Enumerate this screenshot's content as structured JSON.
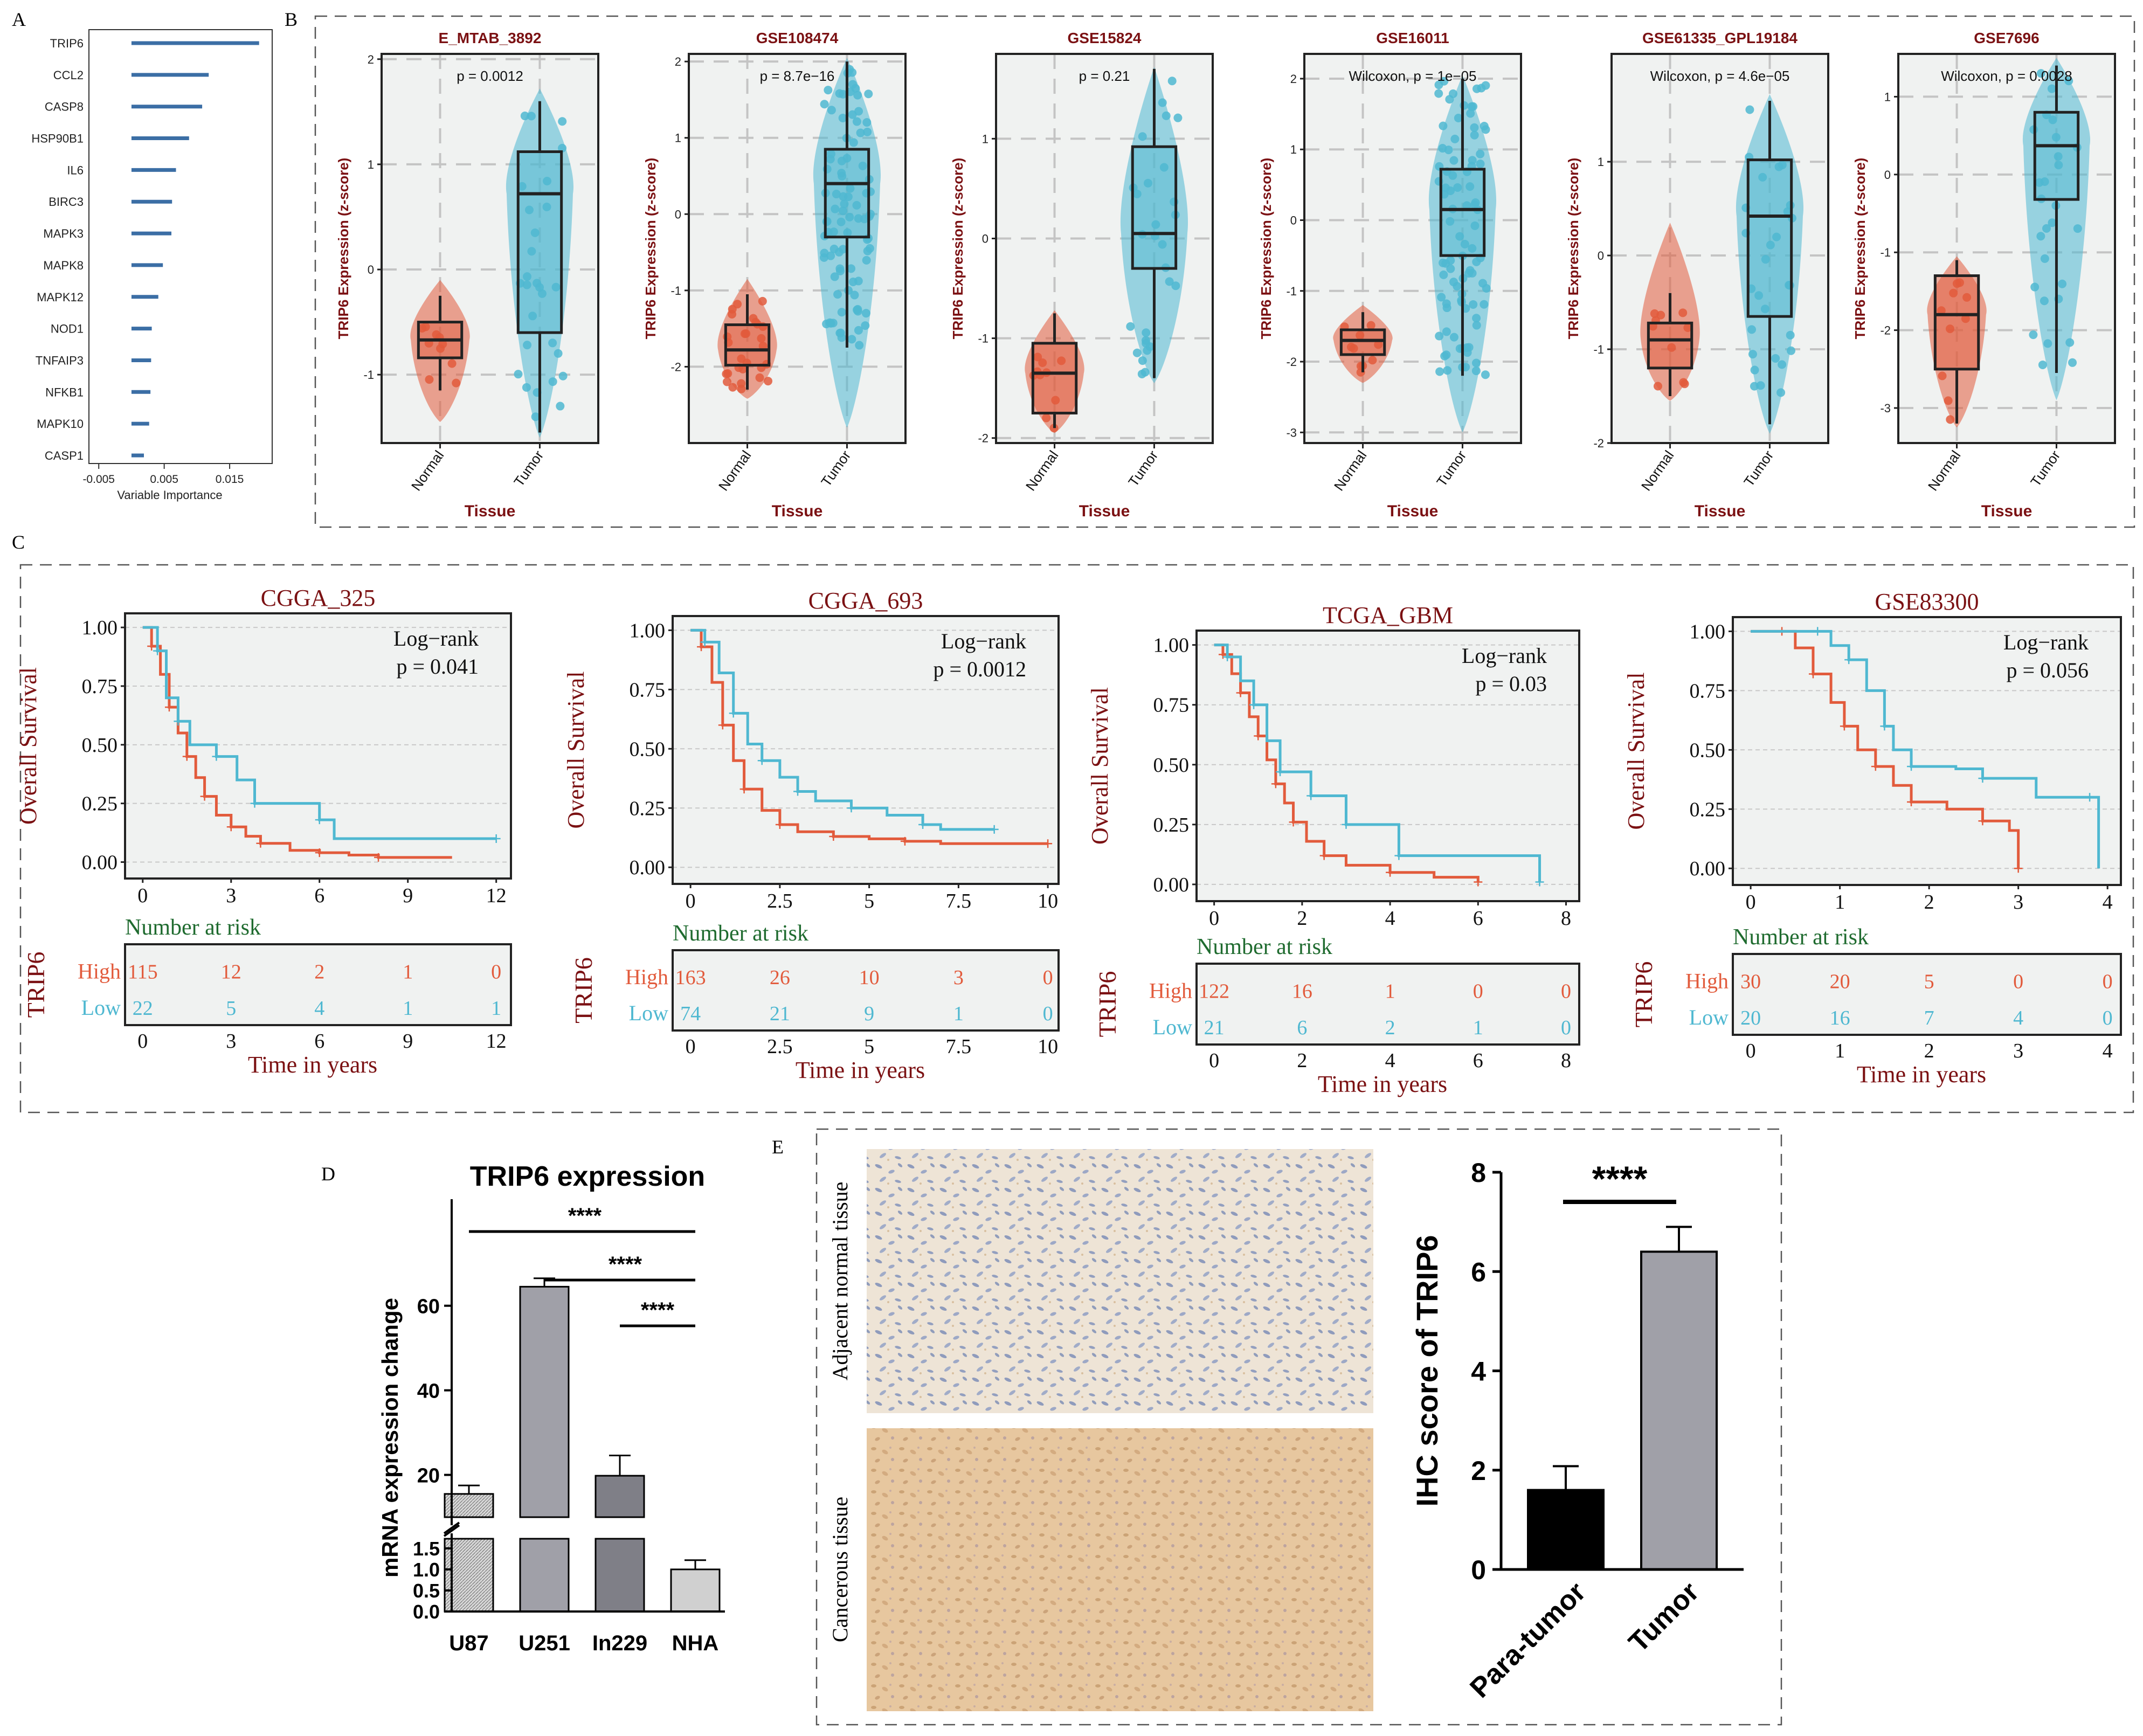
{
  "panel_letters": [
    "A",
    "B",
    "C",
    "D",
    "E"
  ],
  "colors": {
    "normal_red": "#e25b3c",
    "tumor_blue": "#4fb8d1",
    "panel_bg": "#f0f2f1",
    "title_red": "#7b1113",
    "bar_blue": "#3b6ea5",
    "risk_green": "#1f6b2f"
  },
  "chart_data": [
    {
      "id": "A",
      "type": "bar",
      "orientation": "horizontal",
      "categories": [
        "TRIP6",
        "CCL2",
        "CASP8",
        "HSP90B1",
        "IL6",
        "BIRC3",
        "MAPK3",
        "MAPK8",
        "MAPK12",
        "NOD1",
        "TNFAIP3",
        "NFKB1",
        "MAPK10",
        "CASP1"
      ],
      "values": [
        0.0195,
        0.0118,
        0.0108,
        0.0088,
        0.0068,
        0.0062,
        0.0061,
        0.0048,
        0.0041,
        0.0031,
        0.003,
        0.0029,
        0.0027,
        0.0019
      ],
      "xlabel": "Variable Importance",
      "xlim": [
        -0.0065,
        0.0215
      ],
      "xticks": [
        -0.005,
        0.005,
        0.015
      ],
      "xtick_labels": [
        "-0.005",
        "0.005",
        "0.015"
      ]
    },
    {
      "id": "B",
      "type": "violin-box",
      "ylabel": "TRIP6 Expression (z-score)",
      "xlabel": "Tissue",
      "groups": [
        "Normal",
        "Tumor"
      ],
      "subplots": [
        {
          "title": "E_MTAB_3892",
          "pvalue": "p = 0.0012",
          "ylim": [
            -1.65,
            2.05
          ],
          "yticks": [
            -1,
            0,
            1,
            2
          ],
          "normal": {
            "q1": -0.84,
            "median": -0.67,
            "q3": -0.5,
            "min": -1.15,
            "max": -0.25,
            "vmin": -1.45,
            "vmax": -0.1
          },
          "tumor": {
            "q1": -0.6,
            "median": 0.72,
            "q3": 1.12,
            "min": -1.55,
            "max": 1.6,
            "vmin": -1.6,
            "vmax": 1.72
          }
        },
        {
          "title": "GSE108474",
          "pvalue": "p = 8.7e−16",
          "ylim": [
            -3.0,
            2.1
          ],
          "yticks": [
            -2,
            -1,
            0,
            1,
            2
          ],
          "normal": {
            "q1": -1.98,
            "median": -1.78,
            "q3": -1.45,
            "min": -2.3,
            "max": -1.05,
            "vmin": -2.42,
            "vmax": -0.85
          },
          "tumor": {
            "q1": -0.3,
            "median": 0.4,
            "q3": 0.85,
            "min": -1.75,
            "max": 2.0,
            "vmin": -2.8,
            "vmax": 2.05
          }
        },
        {
          "title": "GSE15824",
          "pvalue": "p = 0.21",
          "ylim": [
            -2.05,
            1.85
          ],
          "yticks": [
            -2,
            -1,
            0,
            1
          ],
          "normal": {
            "q1": -1.75,
            "median": -1.35,
            "q3": -1.05,
            "min": -1.9,
            "max": -0.75,
            "vmin": -1.95,
            "vmax": -0.72
          },
          "tumor": {
            "q1": -0.3,
            "median": 0.05,
            "q3": 0.92,
            "min": -1.4,
            "max": 1.7,
            "vmin": -1.45,
            "vmax": 1.72
          }
        },
        {
          "title": "GSE16011",
          "pvalue": "Wilcoxon, p = 1e−05",
          "ylim": [
            -3.15,
            2.35
          ],
          "yticks": [
            -3,
            -2,
            -1,
            0,
            1,
            2
          ],
          "normal": {
            "q1": -1.9,
            "median": -1.7,
            "q3": -1.55,
            "min": -2.15,
            "max": -1.3,
            "vmin": -2.3,
            "vmax": -1.2
          },
          "tumor": {
            "q1": -0.5,
            "median": 0.15,
            "q3": 0.72,
            "min": -2.2,
            "max": 2.0,
            "vmin": -3.0,
            "vmax": 2.05
          }
        },
        {
          "title": "GSE61335_GPL19184",
          "pvalue": "Wilcoxon, p = 4.6e−05",
          "ylim": [
            -2.0,
            2.15
          ],
          "yticks": [
            -2,
            -1,
            0,
            1
          ],
          "normal": {
            "q1": -1.2,
            "median": -0.9,
            "q3": -0.72,
            "min": -1.5,
            "max": -0.4,
            "vmin": -1.55,
            "vmax": 0.35
          },
          "tumor": {
            "q1": -0.65,
            "median": 0.42,
            "q3": 1.02,
            "min": -1.8,
            "max": 1.65,
            "vmin": -1.9,
            "vmax": 1.72
          }
        },
        {
          "title": "GSE7696",
          "pvalue": "Wilcoxon, p = 0.0028",
          "ylim": [
            -3.45,
            1.55
          ],
          "yticks": [
            -3,
            -2,
            -1,
            0,
            1
          ],
          "normal": {
            "q1": -2.5,
            "median": -1.8,
            "q3": -1.3,
            "min": -3.2,
            "max": -1.1,
            "vmin": -3.25,
            "vmax": -1.05
          },
          "tumor": {
            "q1": -0.32,
            "median": 0.37,
            "q3": 0.8,
            "min": -2.55,
            "max": 1.4,
            "vmin": -2.9,
            "vmax": 1.5
          }
        }
      ]
    },
    {
      "id": "C",
      "type": "kaplan-meier",
      "ylabel": "Overall Survival",
      "xlabel": "Time in years",
      "risk_title": "Number at risk",
      "risk_ylabel": "TRIP6",
      "group_labels": [
        "High",
        "Low"
      ],
      "log_rank_label": "Log−rank",
      "yticks": [
        0,
        0.25,
        0.5,
        0.75,
        1.0
      ],
      "ytick_labels": [
        "0.00",
        "0.25",
        "0.50",
        "0.75",
        "1.00"
      ],
      "subplots": [
        {
          "title": "CGGA_325",
          "pvalue": "p = 0.041",
          "xlim": [
            -0.6,
            12.5
          ],
          "xticks": [
            0,
            3,
            6,
            9,
            12
          ],
          "xtick_labels": [
            "0",
            "3",
            "6",
            "9",
            "12"
          ],
          "high": [
            [
              0,
              1
            ],
            [
              0.3,
              0.92
            ],
            [
              0.6,
              0.8
            ],
            [
              0.9,
              0.66
            ],
            [
              1.2,
              0.55
            ],
            [
              1.5,
              0.45
            ],
            [
              1.8,
              0.36
            ],
            [
              2.1,
              0.28
            ],
            [
              2.5,
              0.2
            ],
            [
              3,
              0.15
            ],
            [
              3.5,
              0.11
            ],
            [
              4,
              0.08
            ],
            [
              5,
              0.05
            ],
            [
              6,
              0.04
            ],
            [
              7,
              0.03
            ],
            [
              8,
              0.02
            ],
            [
              10.5,
              0.02
            ]
          ],
          "low": [
            [
              0,
              1
            ],
            [
              0.5,
              0.9
            ],
            [
              0.8,
              0.7
            ],
            [
              1.2,
              0.6
            ],
            [
              1.6,
              0.5
            ],
            [
              2.5,
              0.45
            ],
            [
              3.2,
              0.35
            ],
            [
              3.8,
              0.25
            ],
            [
              5.5,
              0.25
            ],
            [
              6,
              0.18
            ],
            [
              6.5,
              0.1
            ],
            [
              12,
              0.1
            ]
          ],
          "risk_times": [
            0,
            3,
            6,
            9,
            12
          ],
          "risk_high": [
            115,
            12,
            2,
            1,
            0
          ],
          "risk_low": [
            22,
            5,
            4,
            1,
            1
          ]
        },
        {
          "title": "CGGA_693",
          "pvalue": "p = 0.0012",
          "xlim": [
            -0.5,
            10.3
          ],
          "xticks": [
            0,
            2.5,
            5,
            7.5,
            10
          ],
          "xtick_labels": [
            "0",
            "2.5",
            "5",
            "7.5",
            "10"
          ],
          "high": [
            [
              0,
              1
            ],
            [
              0.3,
              0.93
            ],
            [
              0.6,
              0.78
            ],
            [
              0.9,
              0.6
            ],
            [
              1.2,
              0.45
            ],
            [
              1.5,
              0.33
            ],
            [
              2,
              0.24
            ],
            [
              2.5,
              0.18
            ],
            [
              3,
              0.15
            ],
            [
              4,
              0.13
            ],
            [
              5,
              0.12
            ],
            [
              6,
              0.11
            ],
            [
              7,
              0.1
            ],
            [
              10,
              0.1
            ]
          ],
          "low": [
            [
              0,
              1
            ],
            [
              0.4,
              0.95
            ],
            [
              0.8,
              0.82
            ],
            [
              1.2,
              0.65
            ],
            [
              1.6,
              0.52
            ],
            [
              2,
              0.45
            ],
            [
              2.5,
              0.38
            ],
            [
              3,
              0.32
            ],
            [
              3.5,
              0.28
            ],
            [
              4.5,
              0.25
            ],
            [
              5.5,
              0.22
            ],
            [
              6.5,
              0.18
            ],
            [
              7,
              0.16
            ],
            [
              8.5,
              0.16
            ]
          ],
          "risk_times": [
            0,
            2.5,
            5,
            7.5,
            10
          ],
          "risk_high": [
            163,
            26,
            10,
            3,
            0
          ],
          "risk_low": [
            74,
            21,
            9,
            1,
            0
          ]
        },
        {
          "title": "TCGA_GBM",
          "pvalue": "p = 0.03",
          "xlim": [
            -0.4,
            8.3
          ],
          "xticks": [
            0,
            2,
            4,
            6,
            8
          ],
          "xtick_labels": [
            "0",
            "2",
            "4",
            "6",
            "8"
          ],
          "high": [
            [
              0,
              1
            ],
            [
              0.2,
              0.96
            ],
            [
              0.4,
              0.88
            ],
            [
              0.6,
              0.8
            ],
            [
              0.8,
              0.7
            ],
            [
              1.0,
              0.62
            ],
            [
              1.2,
              0.52
            ],
            [
              1.4,
              0.42
            ],
            [
              1.6,
              0.34
            ],
            [
              1.8,
              0.26
            ],
            [
              2.1,
              0.18
            ],
            [
              2.5,
              0.12
            ],
            [
              3,
              0.08
            ],
            [
              4,
              0.05
            ],
            [
              5,
              0.03
            ],
            [
              6,
              0.01
            ]
          ],
          "low": [
            [
              0,
              1
            ],
            [
              0.3,
              0.95
            ],
            [
              0.6,
              0.85
            ],
            [
              0.9,
              0.75
            ],
            [
              1.2,
              0.6
            ],
            [
              1.5,
              0.47
            ],
            [
              2,
              0.47
            ],
            [
              2.2,
              0.37
            ],
            [
              2.7,
              0.37
            ],
            [
              3,
              0.25
            ],
            [
              4.1,
              0.25
            ],
            [
              4.2,
              0.12
            ],
            [
              7.2,
              0.12
            ],
            [
              7.4,
              0.01
            ]
          ],
          "risk_times": [
            0,
            2,
            4,
            6,
            8
          ],
          "risk_high": [
            122,
            16,
            1,
            0,
            0
          ],
          "risk_low": [
            21,
            6,
            2,
            1,
            0
          ]
        },
        {
          "title": "GSE83300",
          "pvalue": "p = 0.056",
          "xlim": [
            -0.2,
            4.15
          ],
          "xticks": [
            0,
            1,
            2,
            3,
            4
          ],
          "xtick_labels": [
            "0",
            "1",
            "2",
            "3",
            "4"
          ],
          "high": [
            [
              0,
              1
            ],
            [
              0.35,
              1
            ],
            [
              0.5,
              0.93
            ],
            [
              0.7,
              0.82
            ],
            [
              0.9,
              0.7
            ],
            [
              1.05,
              0.6
            ],
            [
              1.2,
              0.5
            ],
            [
              1.4,
              0.43
            ],
            [
              1.6,
              0.35
            ],
            [
              1.8,
              0.28
            ],
            [
              2.2,
              0.25
            ],
            [
              2.6,
              0.2
            ],
            [
              2.9,
              0.16
            ],
            [
              3.0,
              0.0
            ]
          ],
          "low": [
            [
              0,
              1
            ],
            [
              0.75,
              1
            ],
            [
              0.9,
              0.94
            ],
            [
              1.1,
              0.88
            ],
            [
              1.3,
              0.75
            ],
            [
              1.5,
              0.6
            ],
            [
              1.6,
              0.5
            ],
            [
              1.8,
              0.43
            ],
            [
              2.3,
              0.42
            ],
            [
              2.6,
              0.38
            ],
            [
              3.2,
              0.3
            ],
            [
              3.8,
              0.3
            ],
            [
              3.9,
              0.0
            ]
          ],
          "risk_times": [
            0,
            1,
            2,
            3,
            4
          ],
          "risk_high": [
            30,
            20,
            5,
            0,
            0
          ],
          "risk_low": [
            20,
            16,
            7,
            4,
            0
          ]
        }
      ]
    },
    {
      "id": "D",
      "type": "bar",
      "title": "TRIP6 expression",
      "categories": [
        "U87",
        "U251",
        "In229",
        "NHA"
      ],
      "values": [
        15.5,
        64.5,
        19.8,
        1.0
      ],
      "errors": [
        2.0,
        2.0,
        4.8,
        0.22
      ],
      "ylabel": "mRNA expression change",
      "axis_break": true,
      "upper_ticks": [
        20,
        40,
        60
      ],
      "lower_ticks": [
        0.0,
        0.5,
        1.0,
        1.5
      ],
      "lower_tick_labels": [
        "0.0",
        "0.5",
        "1.0",
        "1.5"
      ],
      "significance": [
        "****",
        "****",
        "****"
      ],
      "comparisons": [
        [
          "U87",
          "NHA"
        ],
        [
          "U251",
          "NHA"
        ],
        [
          "In229",
          "NHA"
        ]
      ]
    },
    {
      "id": "E",
      "type": "bar",
      "categories": [
        "Para-tumor",
        "Tumor"
      ],
      "values": [
        1.6,
        6.4
      ],
      "errors": [
        0.48,
        0.5
      ],
      "ylabel": "IHC score of TRIP6",
      "ylim": [
        0,
        8
      ],
      "yticks": [
        0,
        2,
        4,
        6,
        8
      ],
      "significance": "****",
      "image_labels": [
        "Adjacent normal tissue",
        "Cancerous tissue"
      ]
    }
  ]
}
